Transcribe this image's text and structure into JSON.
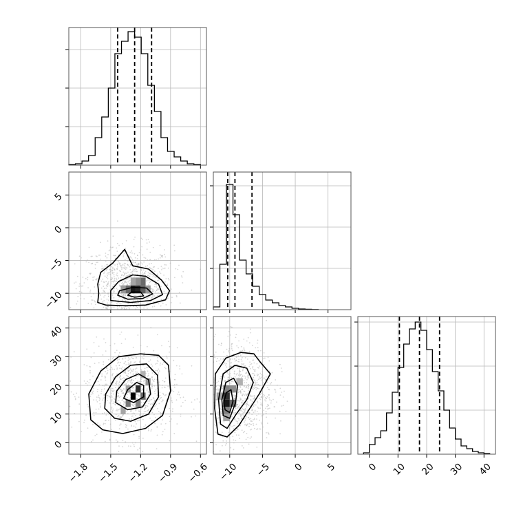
{
  "chart_data": {
    "type": "corner",
    "title": "",
    "grid": true,
    "parameters": [
      {
        "index": 0,
        "range": [
          -1.92,
          -0.54
        ],
        "ticks": [
          -1.8,
          -1.5,
          -1.2,
          -0.9,
          -0.6
        ],
        "tick_labels": [
          "−1.8",
          "−1.5",
          "−1.2",
          "−0.9",
          "−0.6"
        ],
        "quantiles": [
          -1.43,
          -1.26,
          -1.09
        ],
        "hist_range": [
          0,
          1.0
        ],
        "hist_ticks": [
          0.28,
          0.56,
          0.84
        ],
        "hist_edges": [
          -1.92,
          -1.854,
          -1.788,
          -1.722,
          -1.656,
          -1.59,
          -1.524,
          -1.458,
          -1.392,
          -1.326,
          -1.26,
          -1.194,
          -1.128,
          -1.062,
          -0.996,
          -0.93,
          -0.864,
          -0.798,
          -0.732,
          -0.666,
          -0.6
        ],
        "hist_values": [
          0.005,
          0.01,
          0.03,
          0.07,
          0.2,
          0.35,
          0.56,
          0.81,
          0.9,
          0.97,
          0.93,
          0.81,
          0.58,
          0.39,
          0.2,
          0.1,
          0.06,
          0.03,
          0.01,
          0.005
        ]
      },
      {
        "index": 1,
        "range": [
          -12.5,
          8.5
        ],
        "ticks": [
          -10,
          -5,
          0,
          5
        ],
        "tick_labels": [
          "−10",
          "−5",
          "0",
          "5"
        ],
        "quantiles": [
          -10.3,
          -9.2,
          -6.6
        ],
        "hist_range": [
          0,
          1.0
        ],
        "hist_ticks": [
          0.3,
          0.6,
          0.9
        ],
        "hist_edges": [
          -12.5,
          -11.5,
          -10.5,
          -9.5,
          -8.5,
          -7.5,
          -6.5,
          -5.5,
          -4.5,
          -3.5,
          -2.5,
          -1.5,
          -0.5,
          0.5,
          1.5,
          2.5,
          3.5
        ],
        "hist_values": [
          0.02,
          0.33,
          0.91,
          0.69,
          0.36,
          0.26,
          0.17,
          0.11,
          0.07,
          0.05,
          0.03,
          0.02,
          0.01,
          0.005,
          0.003,
          0.001
        ]
      },
      {
        "index": 2,
        "range": [
          -4,
          44
        ],
        "ticks": [
          0,
          10,
          20,
          30,
          40
        ],
        "tick_labels": [
          "0",
          "10",
          "20",
          "30",
          "40"
        ],
        "quantiles": [
          10.5,
          17.5,
          24.5
        ],
        "hist_range": [
          0,
          1.0
        ],
        "hist_ticks": [
          0.32,
          0.64,
          0.96
        ],
        "hist_edges": [
          -2,
          0,
          2,
          4,
          6,
          8,
          10,
          12,
          14,
          16,
          18,
          20,
          22,
          24,
          26,
          28,
          30,
          32,
          34,
          36,
          38,
          40,
          42
        ],
        "hist_values": [
          0.01,
          0.07,
          0.12,
          0.17,
          0.3,
          0.45,
          0.63,
          0.8,
          0.91,
          0.96,
          0.9,
          0.76,
          0.6,
          0.46,
          0.32,
          0.19,
          0.11,
          0.06,
          0.04,
          0.02,
          0.01,
          0.005
        ]
      }
    ],
    "pairs": [
      {
        "x_index": 0,
        "y_index": 1,
        "density_peak": [
          -1.28,
          -10.2
        ],
        "cells": [
          {
            "x": -1.4,
            "y": -10.0,
            "w": 0.05,
            "h": 1.2,
            "v": 0.35
          },
          {
            "x": -1.35,
            "y": -10.0,
            "w": 0.05,
            "h": 1.2,
            "v": 0.55
          },
          {
            "x": -1.3,
            "y": -10.0,
            "w": 0.05,
            "h": 1.2,
            "v": 0.9
          },
          {
            "x": -1.25,
            "y": -10.0,
            "w": 0.05,
            "h": 1.2,
            "v": 0.85
          },
          {
            "x": -1.2,
            "y": -10.0,
            "w": 0.05,
            "h": 1.2,
            "v": 0.6
          },
          {
            "x": -1.15,
            "y": -10.0,
            "w": 0.05,
            "h": 1.2,
            "v": 0.35
          },
          {
            "x": -1.3,
            "y": -8.8,
            "w": 0.05,
            "h": 1.2,
            "v": 0.3
          },
          {
            "x": -1.2,
            "y": -8.8,
            "w": 0.05,
            "h": 1.2,
            "v": 0.55
          },
          {
            "x": -1.25,
            "y": -8.8,
            "w": 0.05,
            "h": 1.2,
            "v": 0.4
          }
        ],
        "contours": [
          [
            [
              -1.63,
              -11.4
            ],
            [
              -1.55,
              -11.8
            ],
            [
              -1.35,
              -11.9
            ],
            [
              -1.15,
              -11.8
            ],
            [
              -0.95,
              -11.0
            ],
            [
              -0.91,
              -9.6
            ],
            [
              -0.99,
              -8.0
            ],
            [
              -1.12,
              -6.3
            ],
            [
              -1.28,
              -5.8
            ],
            [
              -1.36,
              -3.3
            ],
            [
              -1.48,
              -5.4
            ],
            [
              -1.6,
              -6.8
            ],
            [
              -1.63,
              -8.6
            ],
            [
              -1.62,
              -10.0
            ]
          ],
          [
            [
              -1.5,
              -11.1
            ],
            [
              -1.3,
              -11.4
            ],
            [
              -1.1,
              -11.1
            ],
            [
              -0.98,
              -10.2
            ],
            [
              -1.02,
              -8.6
            ],
            [
              -1.15,
              -7.4
            ],
            [
              -1.28,
              -7.2
            ],
            [
              -1.42,
              -8.2
            ],
            [
              -1.5,
              -9.6
            ]
          ],
          [
            [
              -1.43,
              -10.3
            ],
            [
              -1.33,
              -10.9
            ],
            [
              -1.18,
              -10.8
            ],
            [
              -1.08,
              -10.1
            ],
            [
              -1.14,
              -9.2
            ],
            [
              -1.28,
              -9.1
            ],
            [
              -1.41,
              -9.6
            ]
          ],
          [
            [
              -1.33,
              -10.3
            ],
            [
              -1.26,
              -10.6
            ],
            [
              -1.17,
              -10.4
            ],
            [
              -1.2,
              -9.8
            ],
            [
              -1.29,
              -9.8
            ]
          ]
        ]
      },
      {
        "x_index": 0,
        "y_index": 2,
        "density_peak": [
          -1.25,
          17
        ],
        "cells": [
          {
            "x": -1.4,
            "y": 10.0,
            "w": 0.05,
            "h": 2.5,
            "v": 0.3
          },
          {
            "x": -1.35,
            "y": 12.5,
            "w": 0.05,
            "h": 2.5,
            "v": 0.5
          },
          {
            "x": -1.3,
            "y": 15.0,
            "w": 0.05,
            "h": 2.5,
            "v": 1.0
          },
          {
            "x": -1.25,
            "y": 17.5,
            "w": 0.05,
            "h": 2.5,
            "v": 0.8
          },
          {
            "x": -1.2,
            "y": 15.0,
            "w": 0.05,
            "h": 2.5,
            "v": 0.55
          },
          {
            "x": -1.25,
            "y": 12.5,
            "w": 0.05,
            "h": 2.5,
            "v": 0.45
          },
          {
            "x": -1.15,
            "y": 20.0,
            "w": 0.05,
            "h": 2.5,
            "v": 0.35
          },
          {
            "x": -1.35,
            "y": 17.5,
            "w": 0.05,
            "h": 2.5,
            "v": 0.3
          },
          {
            "x": -1.2,
            "y": 22.5,
            "w": 0.05,
            "h": 2.5,
            "v": 0.25
          }
        ],
        "contours": [
          [
            [
              -1.7,
              8.0
            ],
            [
              -1.58,
              4.5
            ],
            [
              -1.38,
              3.2
            ],
            [
              -1.15,
              5.0
            ],
            [
              -0.98,
              9.5
            ],
            [
              -0.9,
              18.0
            ],
            [
              -0.92,
              27.0
            ],
            [
              -1.02,
              30.5
            ],
            [
              -1.2,
              31.0
            ],
            [
              -1.42,
              30.0
            ],
            [
              -1.6,
              25.0
            ],
            [
              -1.72,
              17.0
            ]
          ],
          [
            [
              -1.56,
              12.0
            ],
            [
              -1.46,
              8.5
            ],
            [
              -1.3,
              7.5
            ],
            [
              -1.12,
              10.0
            ],
            [
              -1.02,
              16.0
            ],
            [
              -1.03,
              23.5
            ],
            [
              -1.14,
              27.5
            ],
            [
              -1.3,
              27.0
            ],
            [
              -1.45,
              23.0
            ],
            [
              -1.55,
              17.0
            ]
          ],
          [
            [
              -1.45,
              14.0
            ],
            [
              -1.33,
              11.5
            ],
            [
              -1.18,
              12.5
            ],
            [
              -1.1,
              17.0
            ],
            [
              -1.12,
              22.0
            ],
            [
              -1.22,
              24.0
            ],
            [
              -1.35,
              22.0
            ],
            [
              -1.44,
              18.0
            ]
          ],
          [
            [
              -1.37,
              15.5
            ],
            [
              -1.27,
              14.0
            ],
            [
              -1.17,
              16.0
            ],
            [
              -1.17,
              20.0
            ],
            [
              -1.24,
              21.0
            ],
            [
              -1.33,
              18.5
            ]
          ]
        ]
      },
      {
        "x_index": 1,
        "y_index": 2,
        "density_peak": [
          -10,
          15
        ],
        "cells": [
          {
            "x": -11.0,
            "y": 10.0,
            "w": 1.0,
            "h": 2.5,
            "v": 0.45
          },
          {
            "x": -11.0,
            "y": 12.5,
            "w": 1.0,
            "h": 2.5,
            "v": 0.9
          },
          {
            "x": -11.0,
            "y": 15.0,
            "w": 1.0,
            "h": 2.5,
            "v": 0.8
          },
          {
            "x": -10.0,
            "y": 12.5,
            "w": 1.0,
            "h": 2.5,
            "v": 0.55
          },
          {
            "x": -10.0,
            "y": 17.5,
            "w": 1.0,
            "h": 2.5,
            "v": 0.4
          },
          {
            "x": -11.0,
            "y": 17.5,
            "w": 1.0,
            "h": 2.5,
            "v": 0.45
          },
          {
            "x": -12.0,
            "y": 15.0,
            "w": 1.0,
            "h": 2.5,
            "v": 0.3
          },
          {
            "x": -9.0,
            "y": 20.0,
            "w": 1.0,
            "h": 2.5,
            "v": 0.25
          },
          {
            "x": -11.0,
            "y": 7.5,
            "w": 1.0,
            "h": 2.5,
            "v": 0.3
          }
        ],
        "contours": [
          [
            [
              -11.8,
              3.0
            ],
            [
              -10.4,
              2.0
            ],
            [
              -8.6,
              6.0
            ],
            [
              -7.2,
              11.0
            ],
            [
              -5.5,
              17.0
            ],
            [
              -3.8,
              24.0
            ],
            [
              -5.3,
              28.0
            ],
            [
              -6.3,
              31.0
            ],
            [
              -8.3,
              31.5
            ],
            [
              -10.6,
              29.5
            ],
            [
              -12.2,
              24.0
            ],
            [
              -12.3,
              12.0
            ]
          ],
          [
            [
              -11.4,
              6.5
            ],
            [
              -10.4,
              5.0
            ],
            [
              -9.0,
              10.0
            ],
            [
              -7.4,
              15.0
            ],
            [
              -6.4,
              21.0
            ],
            [
              -7.4,
              26.0
            ],
            [
              -9.2,
              27.0
            ],
            [
              -11.0,
              24.0
            ],
            [
              -11.7,
              15.0
            ]
          ],
          [
            [
              -11.0,
              9.5
            ],
            [
              -10.0,
              8.5
            ],
            [
              -9.1,
              14.0
            ],
            [
              -8.8,
              20.0
            ],
            [
              -9.4,
              22.5
            ],
            [
              -10.6,
              21.0
            ],
            [
              -11.2,
              15.0
            ]
          ],
          [
            [
              -10.7,
              11.5
            ],
            [
              -10.0,
              10.5
            ],
            [
              -9.5,
              14.5
            ],
            [
              -9.8,
              18.5
            ],
            [
              -10.5,
              17.5
            ],
            [
              -10.9,
              14.0
            ]
          ]
        ]
      }
    ]
  }
}
